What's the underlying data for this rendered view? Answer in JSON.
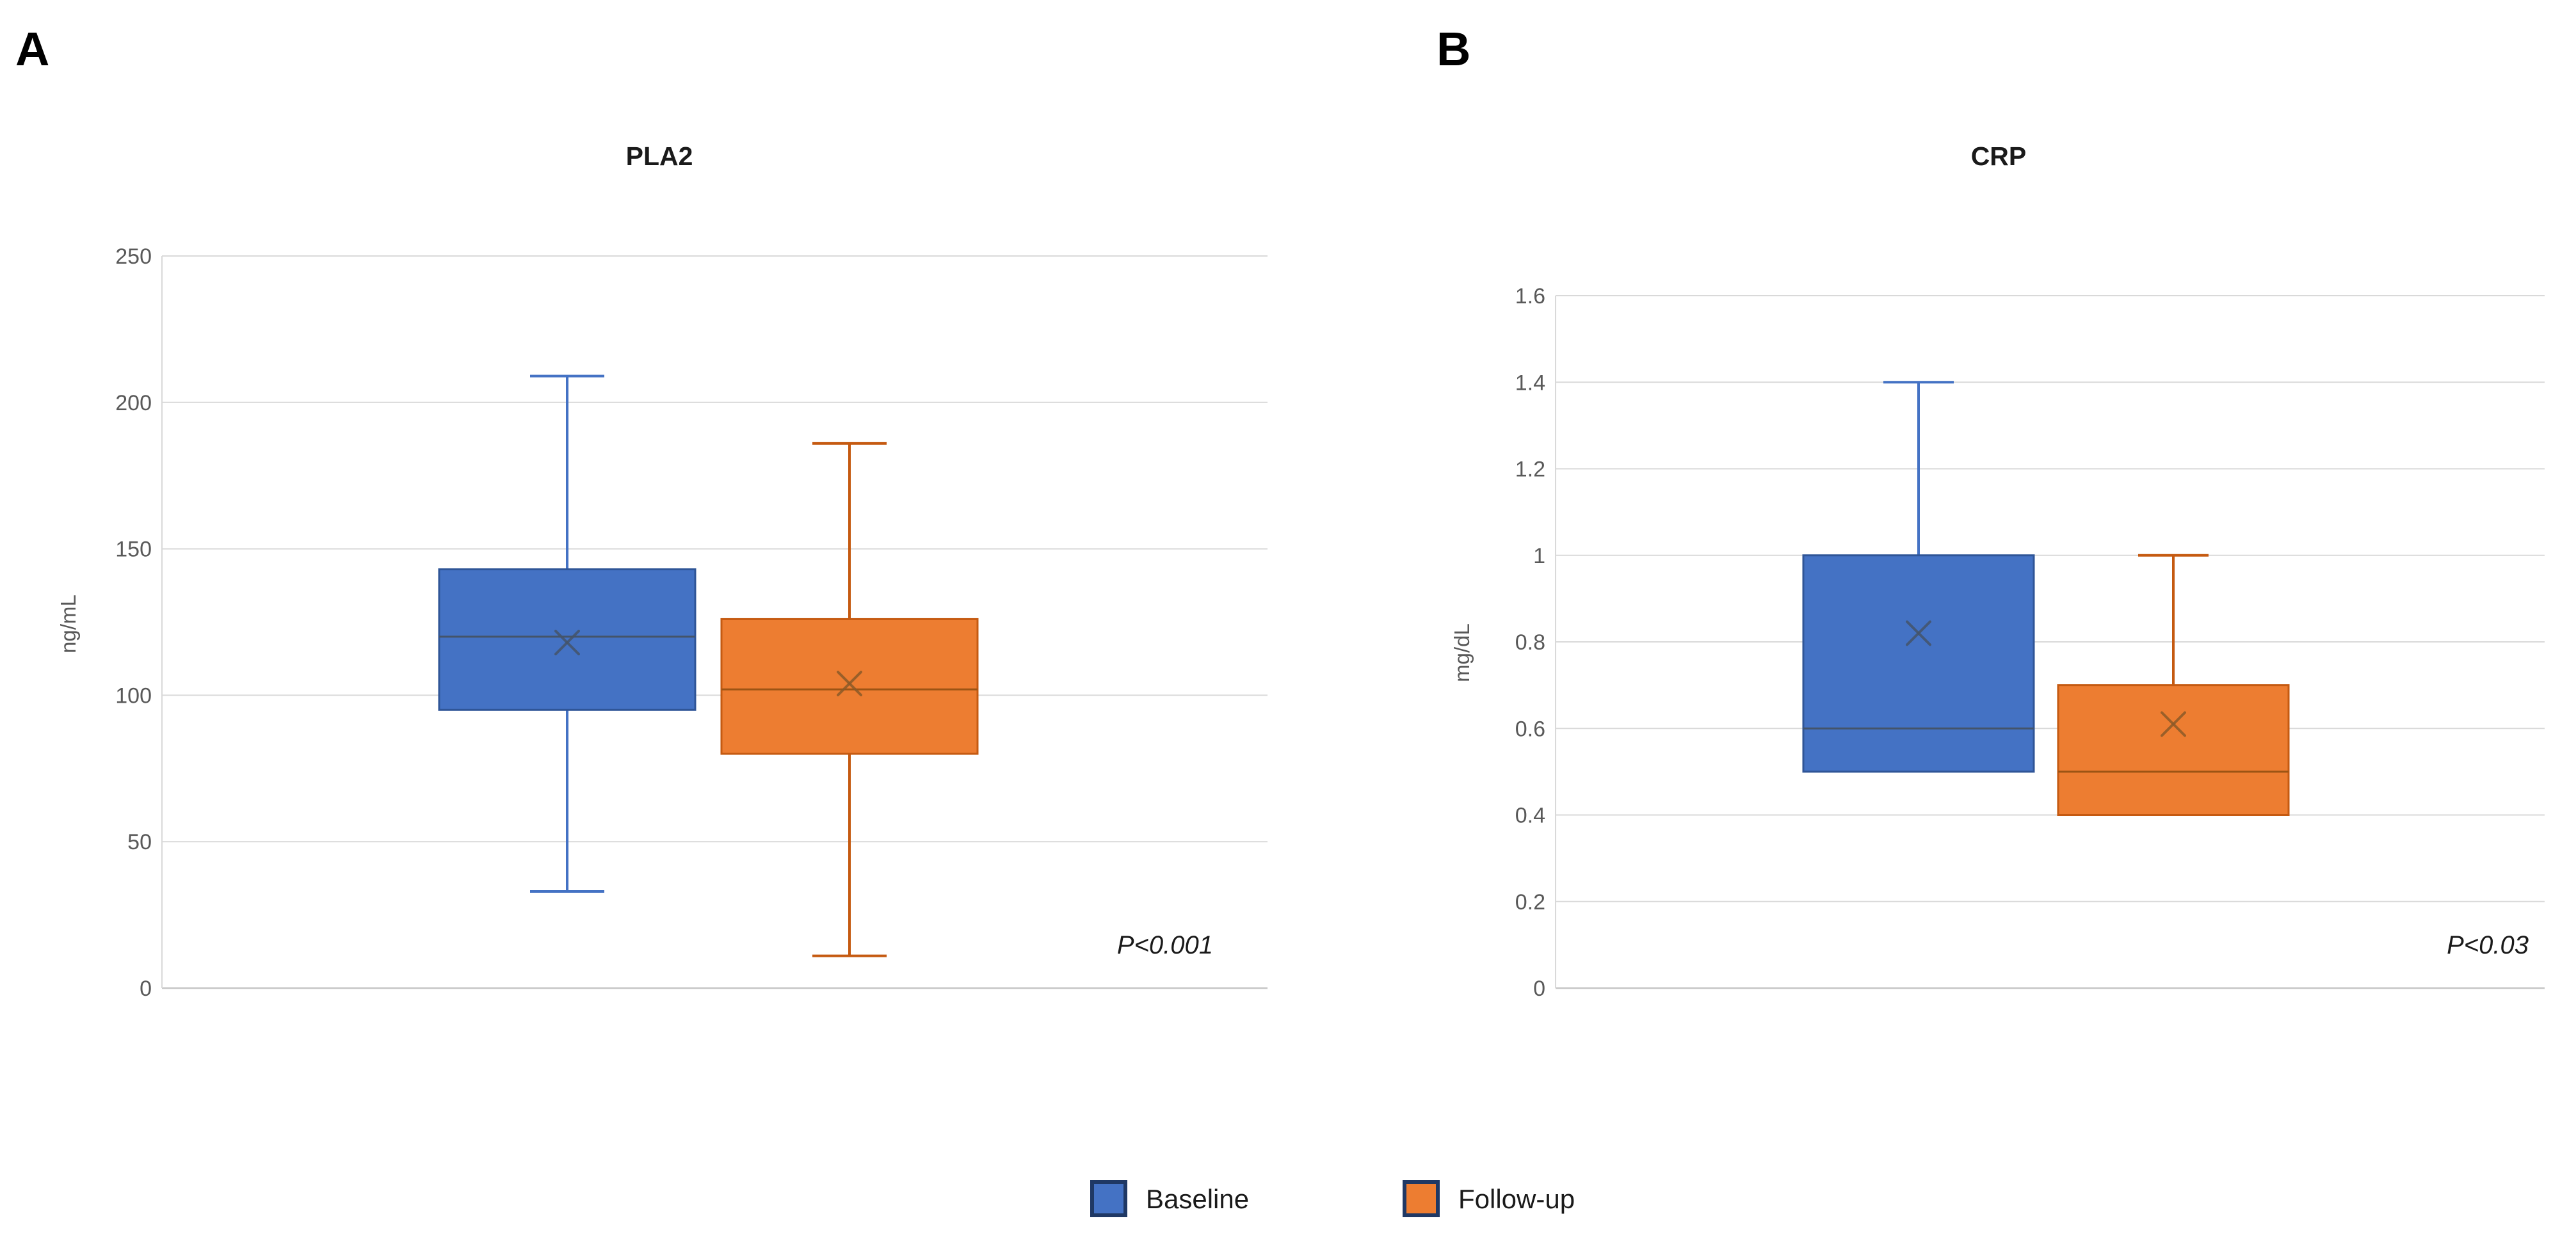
{
  "chart_data": [
    {
      "type": "box",
      "panel_label": "A",
      "title": "PLA2",
      "ylabel": "ng/mL",
      "ylim": [
        0,
        250
      ],
      "ytick_step": 50,
      "ytick_labels": [
        "0",
        "50",
        "100",
        "150",
        "200",
        "250"
      ],
      "grid": true,
      "legend_position": "bottom-center",
      "p_value": "P<0.001",
      "categories": [
        "Baseline",
        "Follow-up"
      ],
      "series": [
        {
          "name": "Baseline",
          "min": 33,
          "q1": 95,
          "median": 120,
          "mean": 118,
          "q3": 143,
          "max": 209
        },
        {
          "name": "Follow-up",
          "min": 11,
          "q1": 80,
          "median": 102,
          "mean": 104,
          "q3": 126,
          "max": 186
        }
      ]
    },
    {
      "type": "box",
      "panel_label": "B",
      "title": "CRP",
      "ylabel": "mg/dL",
      "ylim": [
        0,
        1.6
      ],
      "ytick_step": 0.2,
      "ytick_labels": [
        "0",
        "0.2",
        "0.4",
        "0.6",
        "0.8",
        "1",
        "1.2",
        "1.4",
        "1.6"
      ],
      "grid": true,
      "legend_position": "bottom-center",
      "p_value": "P<0.03",
      "categories": [
        "Baseline",
        "Follow-up"
      ],
      "series": [
        {
          "name": "Baseline",
          "min": 0.5,
          "q1": 0.5,
          "median": 0.6,
          "mean": 0.82,
          "q3": 1.0,
          "max": 1.4
        },
        {
          "name": "Follow-up",
          "min": 0.4,
          "q1": 0.4,
          "median": 0.5,
          "mean": 0.61,
          "q3": 0.7,
          "max": 1.0
        }
      ]
    }
  ],
  "legend": {
    "items": [
      {
        "label": "Baseline",
        "fill": "#4472C4"
      },
      {
        "label": "Follow-up",
        "fill": "#ED7D31"
      }
    ]
  },
  "colors": {
    "series": [
      {
        "fill": "#4472C4",
        "stroke": "#2F5597",
        "whisker": "#4472C4",
        "median": "#44546A",
        "mean": "#44546A"
      },
      {
        "fill": "#ED7D31",
        "stroke": "#C55A11",
        "whisker": "#C55A11",
        "median": "#9C5414",
        "mean": "#8C5A28"
      }
    ],
    "gridline": "#D9D9D9",
    "axis_line": "#C6C6C6",
    "tick_text": "#595959",
    "title_text": "#1a1a1a",
    "panel_letter": "#000000",
    "p_text": "#1a1a1a",
    "legend_swatch_border": "#1F3864",
    "legend_text": "#1a1a1a"
  }
}
